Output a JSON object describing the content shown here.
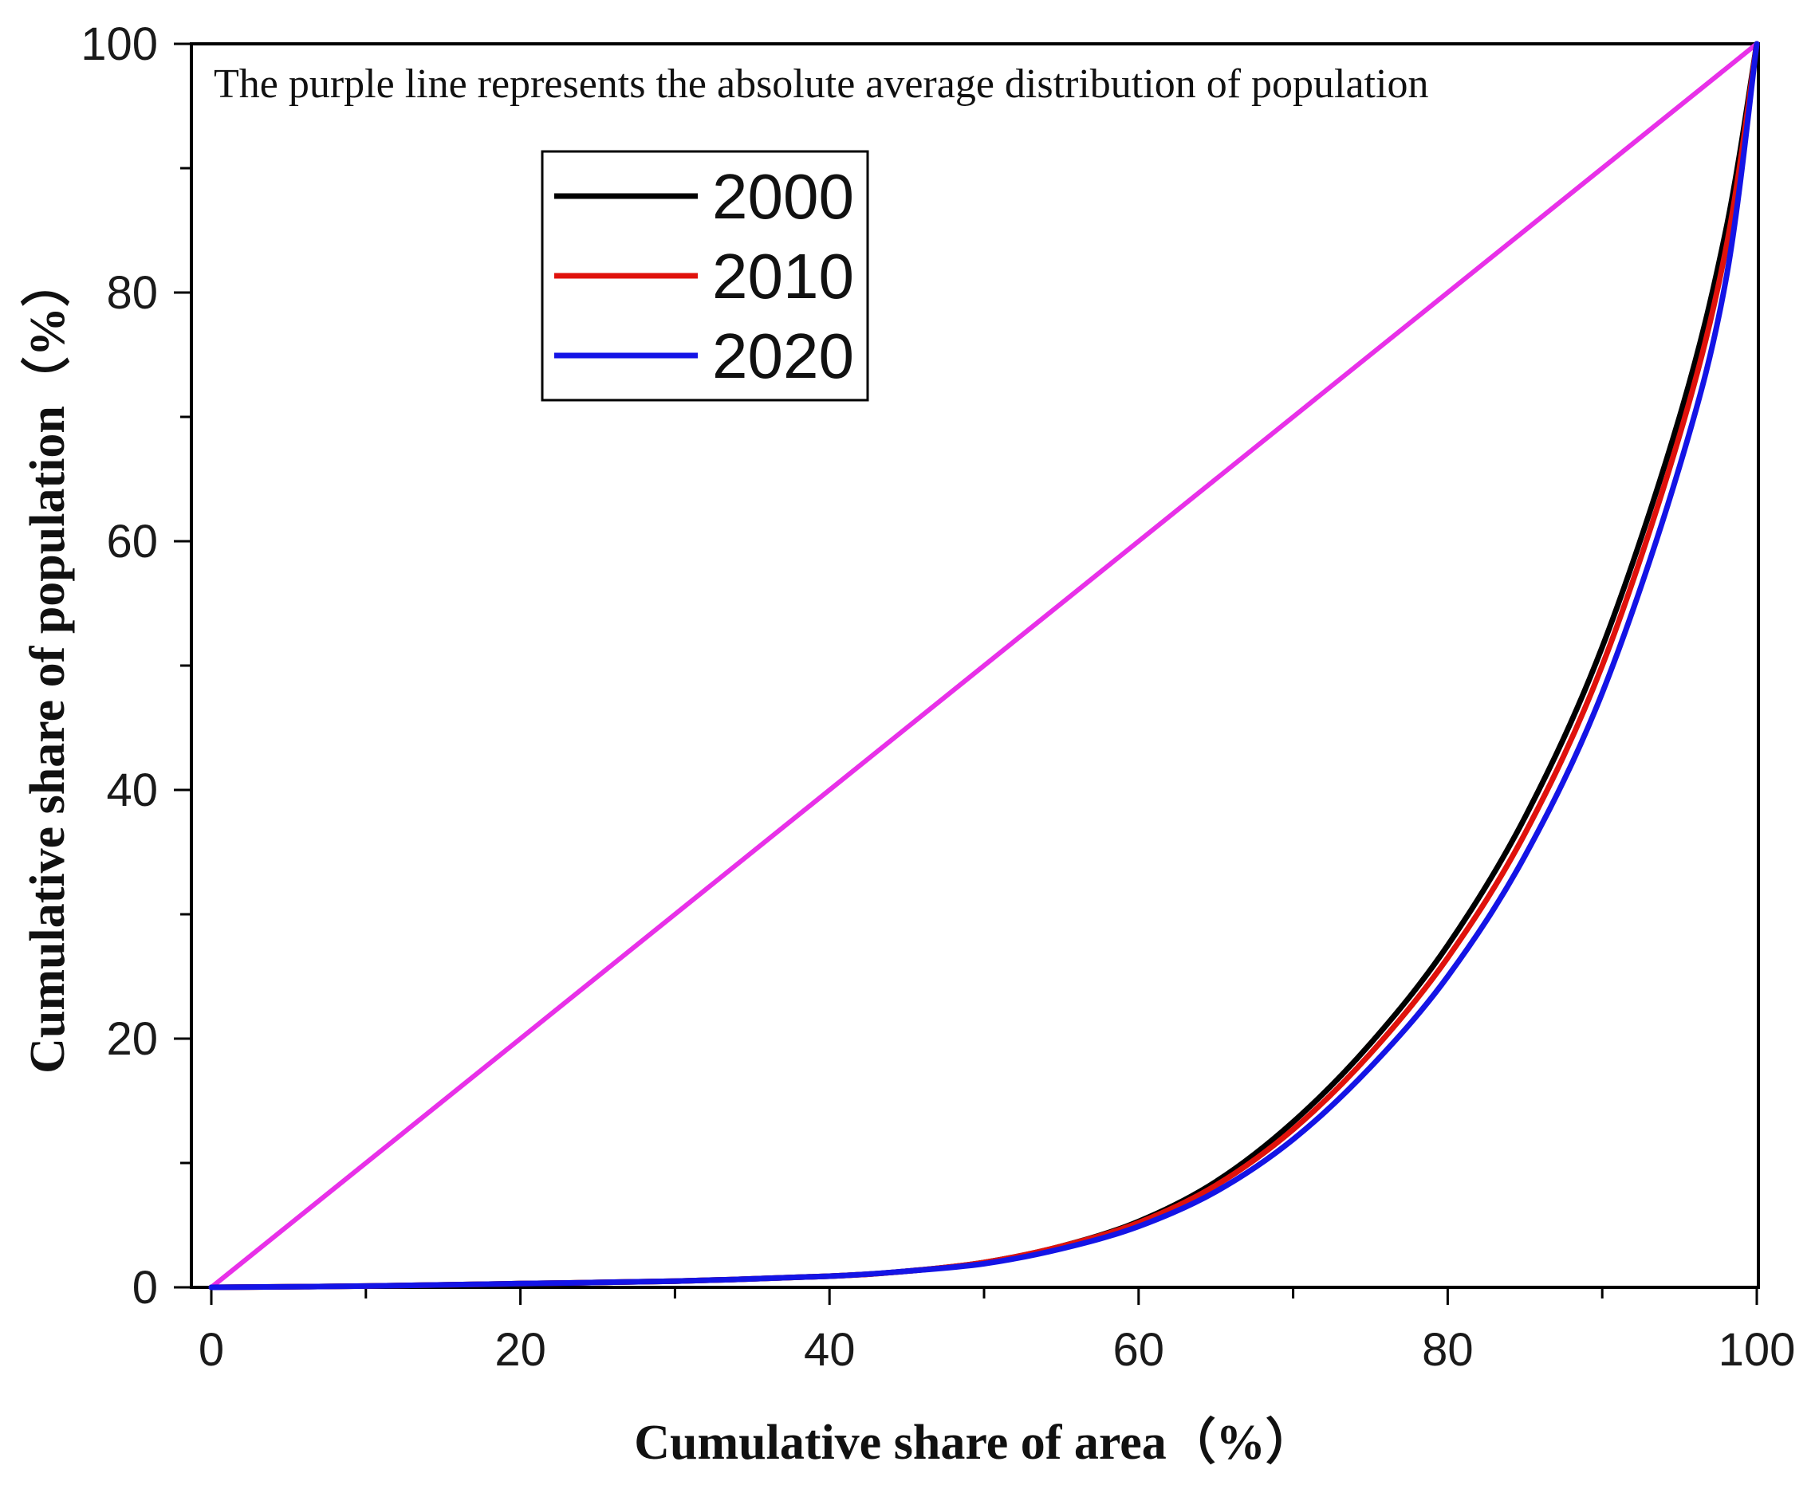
{
  "chart_data": {
    "type": "line",
    "title": "",
    "annotation": "The purple line represents the absolute average distribution of population",
    "xlabel": "Cumulative share of area（%）",
    "ylabel": "Cumulative share of population（%）",
    "xlim": [
      0,
      100
    ],
    "ylim": [
      0,
      100
    ],
    "xticks": [
      "0",
      "20",
      "40",
      "60",
      "80",
      "100"
    ],
    "yticks": [
      "0",
      "20",
      "40",
      "60",
      "80",
      "100"
    ],
    "legend_position": "upper-left",
    "reference_line": {
      "name": "absolute average distribution",
      "color": "#e830e8",
      "x": [
        0,
        100
      ],
      "y": [
        0,
        100
      ]
    },
    "series": [
      {
        "name": "2000",
        "color": "#000000",
        "x": [
          0,
          10,
          20,
          30,
          40,
          45,
          50,
          55,
          60,
          65,
          70,
          75,
          80,
          85,
          90,
          95,
          98,
          100
        ],
        "y": [
          0,
          0.1,
          0.3,
          0.5,
          0.9,
          1.3,
          2.0,
          3.3,
          5.3,
          8.5,
          13.3,
          19.6,
          27.5,
          37.8,
          51.5,
          70.0,
          85.0,
          100
        ]
      },
      {
        "name": "2010",
        "color": "#e0120c",
        "x": [
          0,
          10,
          20,
          30,
          40,
          45,
          50,
          55,
          60,
          65,
          70,
          75,
          80,
          85,
          90,
          95,
          98,
          100
        ],
        "y": [
          0,
          0.1,
          0.3,
          0.5,
          0.9,
          1.3,
          2.0,
          3.3,
          5.2,
          8.2,
          12.7,
          18.8,
          26.5,
          36.5,
          50.0,
          68.5,
          83.5,
          100
        ]
      },
      {
        "name": "2020",
        "color": "#1414e6",
        "x": [
          0,
          10,
          20,
          30,
          40,
          45,
          50,
          55,
          60,
          65,
          70,
          75,
          80,
          85,
          90,
          95,
          98,
          100
        ],
        "y": [
          0,
          0.1,
          0.3,
          0.5,
          0.9,
          1.3,
          1.9,
          3.1,
          4.9,
          7.7,
          11.9,
          17.7,
          25.0,
          34.7,
          47.8,
          66.0,
          81.0,
          100
        ]
      }
    ]
  }
}
